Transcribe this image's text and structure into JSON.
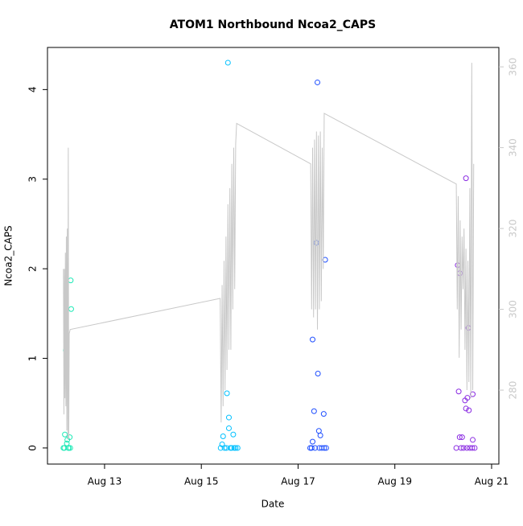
{
  "chart_data": {
    "type": "scatter",
    "title": "ATOM1 Northbound Ncoa2_CAPS",
    "x_label": "Date",
    "y_label": "Ncoa2_CAPS",
    "xlim": [
      11.82,
      21.15
    ],
    "xticks": [
      {
        "value": 13,
        "label": "Aug 13"
      },
      {
        "value": 15,
        "label": "Aug 15"
      },
      {
        "value": 17,
        "label": "Aug 17"
      },
      {
        "value": 19,
        "label": "Aug 19"
      },
      {
        "value": 21,
        "label": "Aug 21"
      }
    ],
    "ylim": [
      -0.18,
      4.47
    ],
    "yticks": [
      0,
      1,
      2,
      3,
      4
    ],
    "y2lim": [
      261.7,
      364.8
    ],
    "y2ticks": [
      280,
      300,
      320,
      340,
      360
    ],
    "y2_tick_color": "#c8c8c8",
    "series": [
      {
        "color": "#1de9b6",
        "x": [
          12.2,
          12.3,
          12.31,
          12.18,
          12.23,
          12.28,
          12.22,
          12.15,
          12.17,
          12.25,
          12.26,
          12.29
        ],
        "values": [
          1.09,
          1.87,
          1.55,
          0.15,
          0.09,
          0.12,
          0.05,
          0,
          0,
          0,
          0,
          0
        ]
      },
      {
        "color": "#00c0ff",
        "x": [
          15.55,
          15.53,
          15.57,
          15.57,
          15.45,
          15.66,
          15.43,
          15.4,
          15.48,
          15.52,
          15.6,
          15.63,
          15.68,
          15.71,
          15.75
        ],
        "values": [
          4.3,
          0.61,
          0.34,
          0.22,
          0.13,
          0.15,
          0.04,
          0,
          0,
          0,
          0,
          0,
          0,
          0,
          0
        ]
      },
      {
        "color": "#1f4fff",
        "x": [
          17.4,
          17.38,
          17.56,
          17.3,
          17.41,
          17.33,
          17.53,
          17.43,
          17.46,
          17.3,
          17.25,
          17.28,
          17.35,
          17.44,
          17.49,
          17.54,
          17.58
        ],
        "values": [
          4.08,
          2.29,
          2.1,
          1.21,
          0.83,
          0.41,
          0.38,
          0.19,
          0.14,
          0.07,
          0,
          0,
          0,
          0,
          0,
          0,
          0
        ]
      },
      {
        "color": "#8a2be2",
        "x": [
          20.47,
          20.3,
          20.34,
          20.52,
          20.32,
          20.61,
          20.5,
          20.45,
          20.47,
          20.53,
          20.34,
          20.39,
          20.61,
          20.27,
          20.37,
          20.42,
          20.49,
          20.55,
          20.6,
          20.65
        ],
        "values": [
          3.01,
          2.04,
          1.95,
          1.34,
          0.63,
          0.6,
          0.56,
          0.53,
          0.44,
          0.42,
          0.12,
          0.12,
          0.09,
          0,
          0,
          0,
          0,
          0,
          0,
          0
        ]
      },
      {
        "type": "line",
        "axis": "y2",
        "color": "#c8c8c8",
        "x": [
          12.15,
          12.16,
          12.17,
          12.18,
          12.19,
          12.2,
          12.21,
          12.22,
          12.23,
          12.24,
          12.25,
          12.26,
          12.27,
          12.29,
          15.39,
          15.41,
          15.43,
          15.45,
          15.47,
          15.49,
          15.51,
          15.53,
          15.55,
          15.57,
          15.59,
          15.61,
          15.63,
          15.65,
          15.67,
          15.69,
          15.71,
          15.73,
          17.26,
          17.28,
          17.3,
          17.32,
          17.34,
          17.36,
          17.38,
          17.4,
          17.42,
          17.44,
          17.46,
          17.48,
          17.5,
          17.52,
          17.54,
          20.27,
          20.29,
          20.31,
          20.33,
          20.35,
          20.37,
          20.39,
          20.41,
          20.43,
          20.45,
          20.47,
          20.49,
          20.51,
          20.53,
          20.55,
          20.57,
          20.59,
          20.61,
          20.63
        ],
        "values": [
          310,
          274,
          310,
          278,
          314,
          276,
          318,
          270,
          320,
          268,
          340,
          268,
          294,
          295,
          302.7,
          272,
          306,
          276,
          312,
          280,
          318,
          285,
          326,
          290,
          330,
          290,
          336,
          300,
          340,
          305,
          341,
          346,
          336,
          300,
          340,
          298,
          342,
          300,
          344,
          295,
          343,
          300,
          344,
          302,
          340,
          310,
          348.5,
          331,
          300,
          328,
          288,
          322,
          295,
          318,
          305,
          320,
          290,
          315,
          280,
          312,
          282,
          330,
          278,
          361,
          280,
          336
        ]
      }
    ]
  }
}
